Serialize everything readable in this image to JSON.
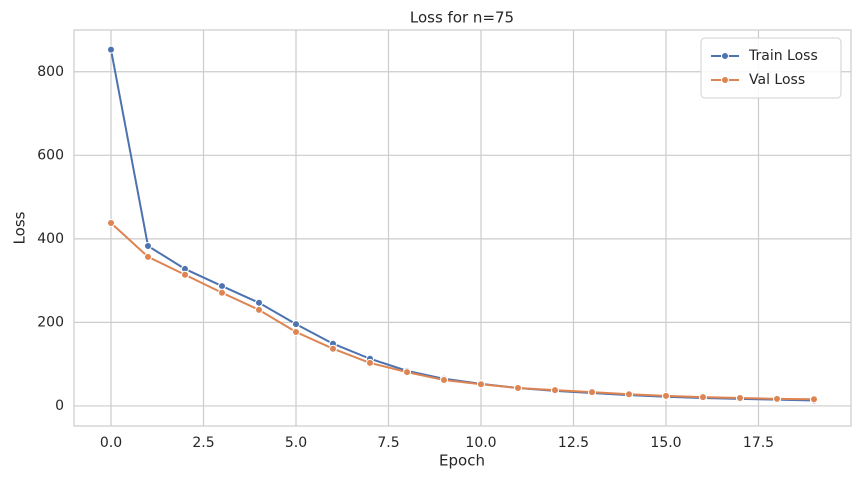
{
  "chart_data": {
    "type": "line",
    "title": "Loss for n=75",
    "x_label": "Epoch",
    "y_label": "Loss",
    "x": [
      0,
      1,
      2,
      3,
      4,
      5,
      6,
      7,
      8,
      9,
      10,
      11,
      12,
      13,
      14,
      15,
      16,
      17,
      18,
      19
    ],
    "series": [
      {
        "name": "Train Loss",
        "color": "#4c72b0",
        "values": [
          853,
          383,
          328,
          287,
          247,
          196,
          149,
          113,
          84,
          65,
          53,
          43,
          36,
          31,
          26,
          22,
          19,
          17,
          15,
          13
        ]
      },
      {
        "name": "Val Loss",
        "color": "#dd8452",
        "values": [
          438,
          357,
          314,
          271,
          230,
          177,
          137,
          103,
          81,
          62,
          52,
          43,
          38,
          33,
          28,
          24,
          21,
          19,
          17,
          16
        ]
      }
    ],
    "xlim": [
      -1,
      20
    ],
    "ylim": [
      -48,
      900
    ],
    "xticks": [
      {
        "value": 0,
        "label": "0.0"
      },
      2.5,
      {
        "value": 5,
        "label": "5.0"
      },
      7.5,
      {
        "value": 10,
        "label": "10.0"
      },
      12.5,
      {
        "value": 15,
        "label": "15.0"
      },
      17.5
    ],
    "yticks": [
      0,
      200,
      400,
      600,
      800
    ],
    "grid": true,
    "legend": "upper-right"
  }
}
